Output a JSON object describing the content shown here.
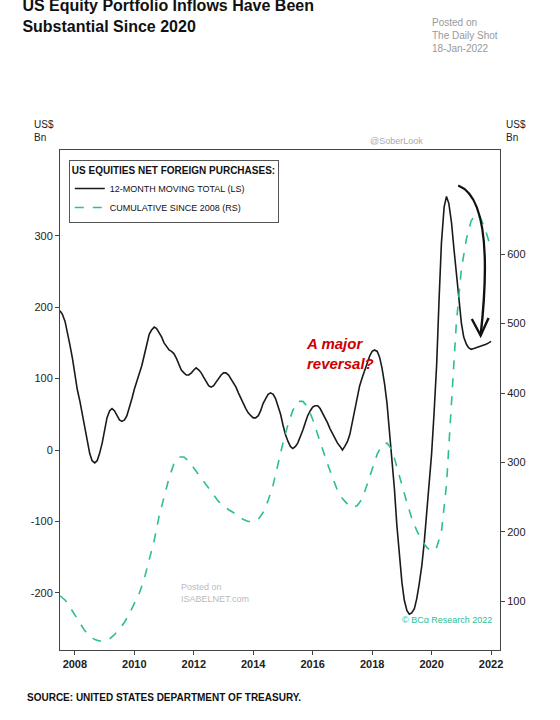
{
  "chart_data": {
    "type": "line",
    "title": "US Equity Portfolio Inflows Have Been\nSubstantial Since 2020",
    "subtitle": "Posted on\nThe Daily Shot\n18-Jan-2022",
    "y_label": "US$\nBn",
    "y2_label": "US$\nBn",
    "legend_title": "US EQUITIES NET FOREIGN PURCHASES:",
    "legend": "upper left",
    "grid": false,
    "source": "SOURCE: UNITED STATES DEPARTMENT OF TREASURY.",
    "annotations": [
      {
        "text": "A major\nreversal?",
        "color": "#cc0000"
      },
      {
        "text": "@SoberLook"
      },
      {
        "text": "Posted on\nISABELNET.com"
      },
      {
        "text": "© BCα Research 2022",
        "color": "#2dbe96"
      }
    ],
    "xlim": [
      2007.5,
      2022.3
    ],
    "xticks": [
      2008,
      2010,
      2012,
      2014,
      2016,
      2018,
      2020,
      2022
    ],
    "ylim": [
      -280,
      420
    ],
    "yticks": [
      -200,
      -100,
      0,
      100,
      200,
      300
    ],
    "y2lim": [
      30,
      750
    ],
    "y2ticks": [
      100,
      200,
      300,
      400,
      500,
      600
    ],
    "series": [
      {
        "name": "12-MONTH MOVING TOTAL (LS)",
        "color": "#1a1a1a",
        "line_style": "solid",
        "x": [
          2007.5,
          2007.58,
          2007.67,
          2007.75,
          2007.83,
          2007.92,
          2008.0,
          2008.08,
          2008.17,
          2008.25,
          2008.33,
          2008.42,
          2008.5,
          2008.58,
          2008.67,
          2008.75,
          2008.83,
          2008.92,
          2009.0,
          2009.08,
          2009.17,
          2009.25,
          2009.33,
          2009.42,
          2009.5,
          2009.58,
          2009.67,
          2009.75,
          2009.83,
          2009.92,
          2010.0,
          2010.08,
          2010.17,
          2010.25,
          2010.33,
          2010.42,
          2010.5,
          2010.58,
          2010.67,
          2010.75,
          2010.83,
          2010.92,
          2011.0,
          2011.08,
          2011.17,
          2011.25,
          2011.33,
          2011.42,
          2011.5,
          2011.58,
          2011.67,
          2011.75,
          2011.83,
          2011.92,
          2012.0,
          2012.08,
          2012.17,
          2012.25,
          2012.33,
          2012.42,
          2012.5,
          2012.58,
          2012.67,
          2012.75,
          2012.83,
          2012.92,
          2013.0,
          2013.08,
          2013.17,
          2013.25,
          2013.33,
          2013.42,
          2013.5,
          2013.58,
          2013.67,
          2013.75,
          2013.83,
          2013.92,
          2014.0,
          2014.08,
          2014.17,
          2014.25,
          2014.33,
          2014.42,
          2014.5,
          2014.58,
          2014.67,
          2014.75,
          2014.83,
          2014.92,
          2015.0,
          2015.08,
          2015.17,
          2015.25,
          2015.33,
          2015.42,
          2015.5,
          2015.58,
          2015.67,
          2015.75,
          2015.83,
          2015.92,
          2016.0,
          2016.08,
          2016.17,
          2016.25,
          2016.33,
          2016.42,
          2016.5,
          2016.58,
          2016.67,
          2016.75,
          2016.83,
          2016.92,
          2017.0,
          2017.08,
          2017.17,
          2017.25,
          2017.33,
          2017.42,
          2017.5,
          2017.58,
          2017.67,
          2017.75,
          2017.83,
          2017.92,
          2018.0,
          2018.08,
          2018.17,
          2018.25,
          2018.33,
          2018.42,
          2018.5,
          2018.58,
          2018.67,
          2018.75,
          2018.83,
          2018.92,
          2019.0,
          2019.08,
          2019.17,
          2019.25,
          2019.33,
          2019.42,
          2019.5,
          2019.58,
          2019.67,
          2019.75,
          2019.83,
          2019.92,
          2020.0,
          2020.08,
          2020.17,
          2020.25,
          2020.33,
          2020.42,
          2020.5,
          2020.58,
          2020.67,
          2020.75,
          2020.83,
          2020.92,
          2021.0,
          2021.08,
          2021.17,
          2021.25,
          2021.33,
          2021.42,
          2021.5,
          2021.58,
          2021.67,
          2021.75,
          2021.83,
          2021.92,
          2022.0
        ],
        "values": [
          195,
          190,
          180,
          165,
          148,
          128,
          105,
          85,
          68,
          50,
          30,
          12,
          -5,
          -15,
          -18,
          -15,
          -5,
          10,
          28,
          45,
          55,
          58,
          55,
          48,
          42,
          40,
          42,
          48,
          58,
          72,
          85,
          95,
          105,
          118,
          132,
          148,
          162,
          168,
          172,
          170,
          165,
          158,
          150,
          145,
          140,
          138,
          135,
          128,
          120,
          112,
          108,
          105,
          105,
          108,
          112,
          115,
          112,
          108,
          102,
          95,
          90,
          88,
          90,
          95,
          100,
          105,
          108,
          108,
          105,
          100,
          95,
          88,
          80,
          72,
          65,
          58,
          52,
          48,
          45,
          45,
          48,
          55,
          65,
          72,
          78,
          80,
          78,
          72,
          62,
          50,
          35,
          22,
          12,
          5,
          2,
          5,
          10,
          18,
          28,
          38,
          48,
          55,
          60,
          62,
          62,
          58,
          52,
          45,
          38,
          30,
          22,
          15,
          10,
          5,
          0,
          5,
          12,
          22,
          38,
          56,
          75,
          90,
          102,
          112,
          122,
          132,
          138,
          140,
          138,
          130,
          115,
          92,
          65,
          30,
          -10,
          -55,
          -105,
          -150,
          -185,
          -210,
          -225,
          -230,
          -228,
          -222,
          -208,
          -188,
          -162,
          -130,
          -92,
          -50,
          -5,
          50,
          120,
          210,
          290,
          340,
          355,
          345,
          318,
          282,
          245,
          210,
          178,
          158,
          148,
          143,
          141,
          142,
          143,
          144,
          145,
          146,
          148,
          150,
          152
        ]
      },
      {
        "name": "CUMULATIVE SINCE 2008 (RS)",
        "color": "#2dbe96",
        "line_style": "dashed",
        "axis": "y2",
        "x": [
          2007.5,
          2007.67,
          2007.83,
          2008.0,
          2008.17,
          2008.33,
          2008.5,
          2008.67,
          2008.83,
          2009.0,
          2009.17,
          2009.33,
          2009.5,
          2009.67,
          2009.83,
          2010.0,
          2010.17,
          2010.33,
          2010.5,
          2010.67,
          2010.83,
          2011.0,
          2011.17,
          2011.33,
          2011.5,
          2011.67,
          2011.83,
          2012.0,
          2012.17,
          2012.33,
          2012.5,
          2012.67,
          2012.83,
          2013.0,
          2013.17,
          2013.33,
          2013.5,
          2013.67,
          2013.83,
          2014.0,
          2014.17,
          2014.33,
          2014.5,
          2014.67,
          2014.83,
          2015.0,
          2015.17,
          2015.33,
          2015.5,
          2015.67,
          2015.83,
          2016.0,
          2016.17,
          2016.33,
          2016.5,
          2016.67,
          2016.83,
          2017.0,
          2017.17,
          2017.33,
          2017.5,
          2017.67,
          2017.83,
          2018.0,
          2018.17,
          2018.33,
          2018.5,
          2018.67,
          2018.83,
          2019.0,
          2019.17,
          2019.33,
          2019.5,
          2019.67,
          2019.83,
          2020.0,
          2020.17,
          2020.33,
          2020.5,
          2020.67,
          2020.83,
          2021.0,
          2021.17,
          2021.33,
          2021.5,
          2021.67,
          2021.83,
          2022.0
        ],
        "values": [
          108,
          102,
          92,
          80,
          68,
          58,
          50,
          45,
          43,
          43,
          46,
          52,
          60,
          70,
          82,
          96,
          112,
          132,
          158,
          188,
          222,
          252,
          278,
          298,
          308,
          308,
          302,
          292,
          282,
          272,
          262,
          252,
          244,
          238,
          232,
          228,
          222,
          218,
          215,
          215,
          218,
          228,
          245,
          268,
          298,
          328,
          355,
          375,
          388,
          388,
          380,
          362,
          340,
          318,
          298,
          278,
          260,
          248,
          240,
          235,
          238,
          248,
          268,
          292,
          312,
          325,
          328,
          318,
          295,
          268,
          242,
          220,
          202,
          188,
          178,
          172,
          178,
          200,
          268,
          380,
          500,
          578,
          622,
          648,
          658,
          650,
          632,
          608
        ]
      }
    ]
  }
}
